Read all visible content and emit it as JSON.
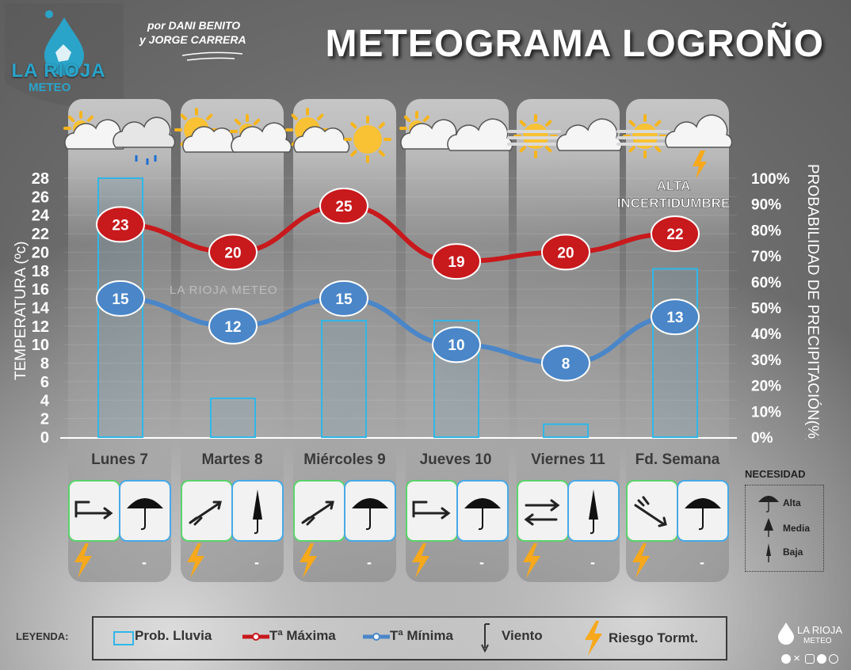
{
  "header": {
    "title": "METEOGRAMA LOGROÑO",
    "authors_line1": "por DANI BENITO",
    "authors_line2": "y JORGE CARRERA",
    "logo_name": "LA RIOJA",
    "logo_sub": "METEO",
    "watermark": "LA RIOJA METEO"
  },
  "chart_data": {
    "type": "line",
    "categories": [
      "Lunes 7",
      "Martes 8",
      "Miércoles 9",
      "Jueves 10",
      "Viernes 11",
      "Fd. Semana"
    ],
    "series": [
      {
        "name": "Tª Máxima",
        "values": [
          23,
          20,
          25,
          19,
          20,
          22
        ],
        "color": "#c8191c"
      },
      {
        "name": "Tª Mínima",
        "values": [
          15,
          12,
          15,
          10,
          8,
          13
        ],
        "color": "#4a86c8"
      },
      {
        "name": "Prob. Lluvia",
        "values": [
          100,
          15,
          45,
          45,
          5,
          65
        ],
        "color": "#2fb7e8",
        "axis": "right"
      }
    ],
    "ylabel": "TEMPERATURA (ºc)",
    "ylim": [
      0,
      28
    ],
    "yticks": [
      "0",
      "2",
      "4",
      "6",
      "8",
      "10",
      "12",
      "14",
      "16",
      "18",
      "20",
      "22",
      "24",
      "26",
      "28"
    ],
    "y2label": "PROBABILIDAD DE PRECIPITACIÓN(%)",
    "y2lim": [
      0,
      100
    ],
    "y2ticks": [
      "0%",
      "10%",
      "20%",
      "30%",
      "40%",
      "50%",
      "60%",
      "70%",
      "80%",
      "90%",
      "100%"
    ],
    "annotation": "ALTA INCERTIDUMBRE",
    "weather_icons": [
      "partly-cloudy-icon",
      "rain-cloud-icon",
      "sun-cloud-icon",
      "partly-cloudy-icon",
      "sun-cloud-icon",
      "sun-icon",
      "partly-cloudy-icon",
      "cloudy-icon",
      "fog-sun-icon",
      "cloudy-icon",
      "fog-sun-icon",
      "storm-cloud-icon"
    ],
    "wind_icons": [
      "wind-arrow-east-icon",
      "wind-arrow-northeast-icon",
      "wind-arrow-northeast-icon",
      "wind-arrow-east-icon",
      "wind-variable-icon",
      "wind-arrow-southeast-icon"
    ],
    "umbrella_need": [
      "Alta",
      "Baja",
      "Alta",
      "Alta",
      "Baja",
      "Alta"
    ],
    "storm_risk": [
      true,
      true,
      true,
      true,
      true,
      true
    ],
    "storm_risk_text": [
      "-",
      "-",
      "-",
      "-",
      "-",
      "-"
    ]
  },
  "need_legend": {
    "title": "NECESIDAD",
    "items": [
      "Alta",
      "Media",
      "Baja"
    ]
  },
  "legend": {
    "title": "LEYENDA:",
    "rain": "Prob. Lluvia",
    "tmax": "Tª Máxima",
    "tmin": "Tª Mínima",
    "wind": "Viento",
    "storm": "Riesgo Tormt."
  },
  "footer": {
    "brand": "LA RIOJA",
    "brand_sub": "METEO",
    "social_icons": [
      "facebook-icon",
      "x-icon",
      "instagram-icon",
      "telegram-icon",
      "whatsapp-icon"
    ]
  },
  "colors": {
    "tmax": "#c8191c",
    "tmin": "#4a86c8",
    "rain": "#2fb7e8",
    "storm": "#f7a81b",
    "accent": "#2aa4c9"
  }
}
